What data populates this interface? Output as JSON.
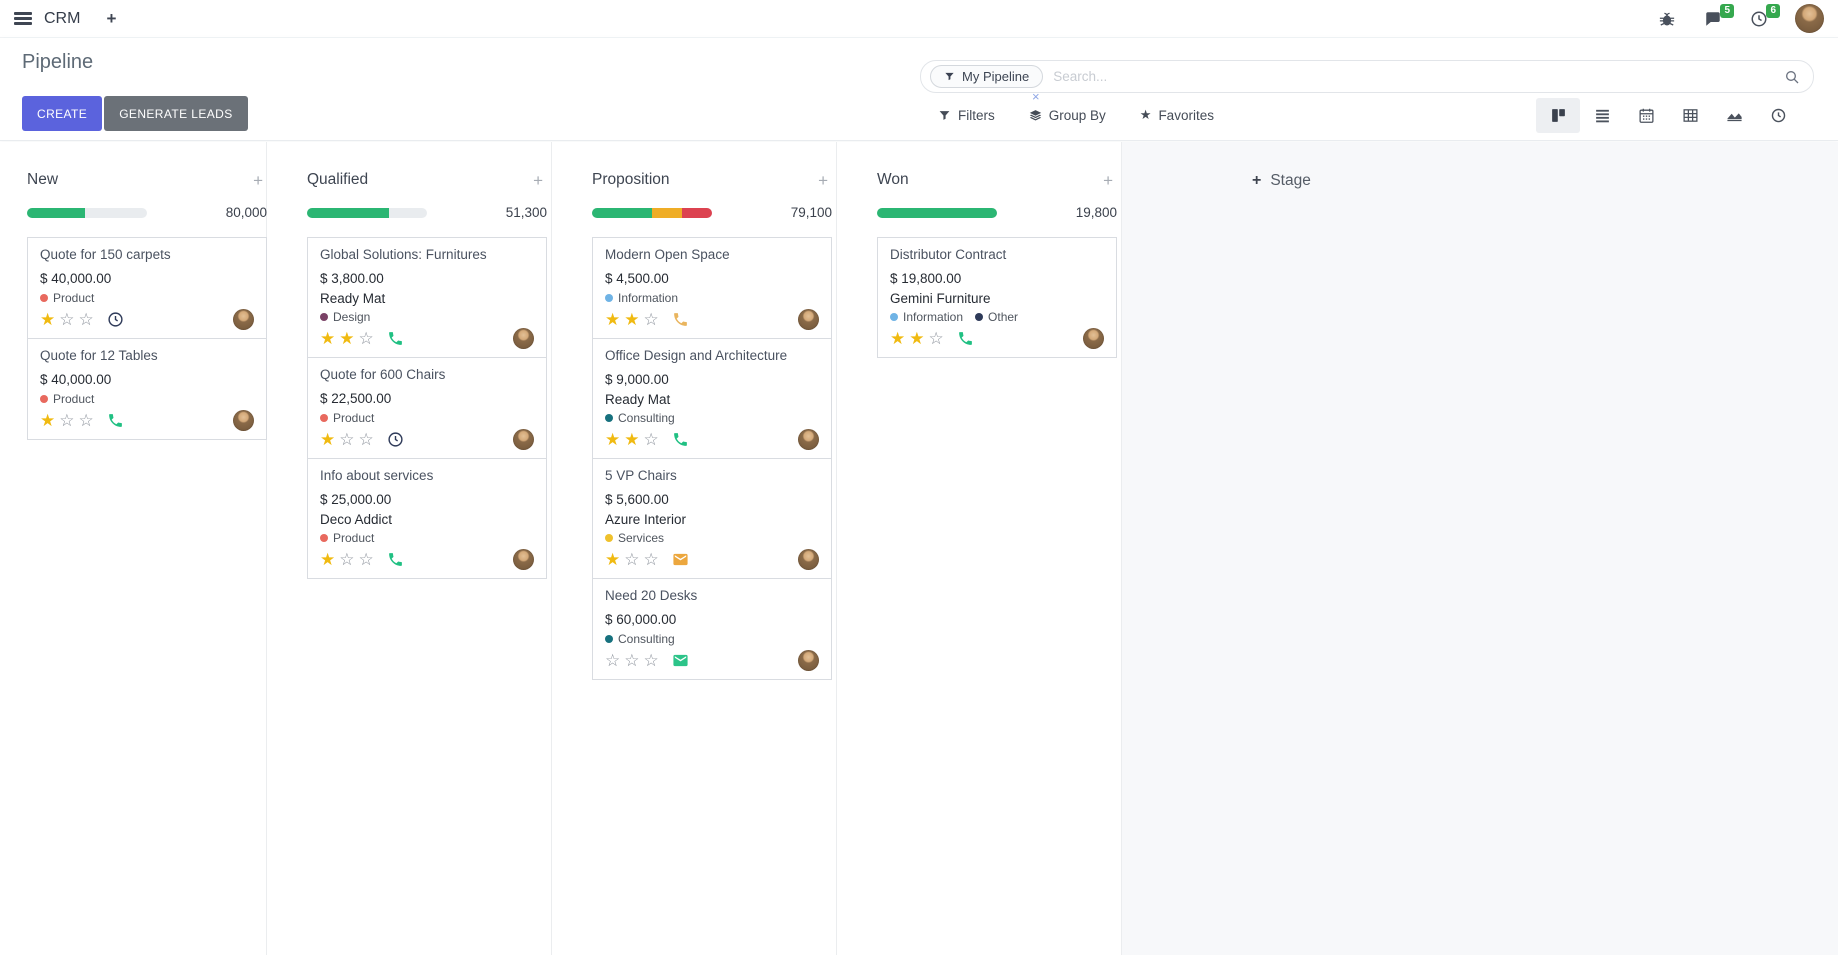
{
  "icons": {
    "plus": "+",
    "close": "×",
    "star_filled": "★",
    "star_empty": "☆"
  },
  "navbar": {
    "app_name": "CRM",
    "messages_badge": "5",
    "activities_badge": "6"
  },
  "control_panel": {
    "title": "Pipeline",
    "create_label": "CREATE",
    "generate_leads_label": "GENERATE LEADS",
    "search": {
      "facet": "My Pipeline",
      "placeholder": "Search..."
    },
    "filters_label": "Filters",
    "group_by_label": "Group By",
    "favorites_label": "Favorites"
  },
  "kanban": {
    "add_stage_label": "Stage",
    "columns": [
      {
        "name": "New",
        "total": "80,000",
        "progress": [
          {
            "color": "#2bb673",
            "pct": 48
          }
        ],
        "cards": [
          {
            "title": "Quote for 150 carpets",
            "amount": "$ 40,000.00",
            "partner": null,
            "tags": [
              {
                "label": "Product",
                "color": "#e8695e"
              }
            ],
            "stars": 1,
            "activity": "clock",
            "activity_color": "#2e3a59"
          },
          {
            "title": "Quote for 12 Tables",
            "amount": "$ 40,000.00",
            "partner": null,
            "tags": [
              {
                "label": "Product",
                "color": "#e8695e"
              }
            ],
            "stars": 1,
            "activity": "phone",
            "activity_color": "#21c083"
          }
        ]
      },
      {
        "name": "Qualified",
        "total": "51,300",
        "progress": [
          {
            "color": "#2bb673",
            "pct": 68
          }
        ],
        "cards": [
          {
            "title": "Global Solutions: Furnitures",
            "amount": "$ 3,800.00",
            "partner": "Ready Mat",
            "tags": [
              {
                "label": "Design",
                "color": "#7a4266"
              }
            ],
            "stars": 2,
            "activity": "phone",
            "activity_color": "#21c083"
          },
          {
            "title": "Quote for 600 Chairs",
            "amount": "$ 22,500.00",
            "partner": null,
            "tags": [
              {
                "label": "Product",
                "color": "#e8695e"
              }
            ],
            "stars": 1,
            "activity": "clock",
            "activity_color": "#2e3a59"
          },
          {
            "title": "Info about services",
            "amount": "$ 25,000.00",
            "partner": "Deco Addict",
            "tags": [
              {
                "label": "Product",
                "color": "#e8695e"
              }
            ],
            "stars": 1,
            "activity": "phone",
            "activity_color": "#21c083"
          }
        ]
      },
      {
        "name": "Proposition",
        "total": "79,100",
        "progress": [
          {
            "color": "#2bb673",
            "pct": 50
          },
          {
            "color": "#efad26",
            "pct": 25
          },
          {
            "color": "#dc4250",
            "pct": 25
          }
        ],
        "cards": [
          {
            "title": "Modern Open Space",
            "amount": "$ 4,500.00",
            "partner": null,
            "tags": [
              {
                "label": "Information",
                "color": "#6fb3e5"
              }
            ],
            "stars": 2,
            "activity": "phone",
            "activity_color": "#e9b55f"
          },
          {
            "title": "Office Design and Architecture",
            "amount": "$ 9,000.00",
            "partner": "Ready Mat",
            "tags": [
              {
                "label": "Consulting",
                "color": "#17717e"
              }
            ],
            "stars": 2,
            "activity": "phone",
            "activity_color": "#21c083"
          },
          {
            "title": "5 VP Chairs",
            "amount": "$ 5,600.00",
            "partner": "Azure Interior",
            "tags": [
              {
                "label": "Services",
                "color": "#efc12c"
              }
            ],
            "stars": 1,
            "activity": "envelope",
            "activity_color": "#eca73e"
          },
          {
            "title": "Need 20 Desks",
            "amount": "$ 60,000.00",
            "partner": null,
            "tags": [
              {
                "label": "Consulting",
                "color": "#17717e"
              }
            ],
            "stars": 0,
            "activity": "envelope",
            "activity_color": "#2cc489"
          }
        ]
      },
      {
        "name": "Won",
        "total": "19,800",
        "progress": [
          {
            "color": "#2bb673",
            "pct": 100
          }
        ],
        "cards": [
          {
            "title": "Distributor Contract",
            "amount": "$ 19,800.00",
            "partner": "Gemini Furniture",
            "tags": [
              {
                "label": "Information",
                "color": "#6fb3e5"
              },
              {
                "label": "Other",
                "color": "#2e3a59"
              }
            ],
            "stars": 2,
            "activity": "phone",
            "activity_color": "#21c083"
          }
        ]
      }
    ]
  }
}
